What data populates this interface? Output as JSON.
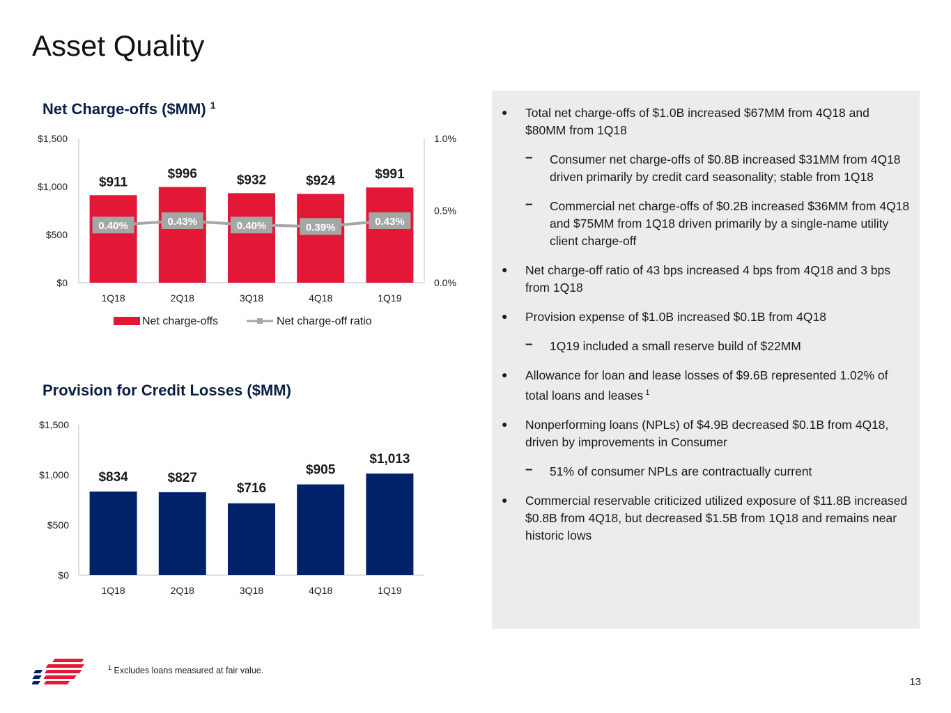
{
  "page": {
    "title": "Asset Quality",
    "page_number": "13",
    "footnote_mark": "1",
    "footnote_text": "Excludes loans measured at fair value.",
    "colors": {
      "red": "#e31837",
      "navy": "#012169",
      "gray": "#a6a6a6",
      "panel": "#ececec"
    }
  },
  "chart_data": [
    {
      "type": "bar",
      "title": "Net Charge-offs ($MM)",
      "title_sup": "1",
      "categories": [
        "1Q18",
        "2Q18",
        "3Q18",
        "4Q18",
        "1Q19"
      ],
      "series": [
        {
          "name": "Net charge-offs",
          "type": "bar",
          "values": [
            911,
            996,
            932,
            924,
            991
          ],
          "labels": [
            "$911",
            "$996",
            "$932",
            "$924",
            "$991"
          ]
        },
        {
          "name": "Net charge-off ratio",
          "type": "line",
          "axis": "right",
          "values": [
            0.4,
            0.43,
            0.4,
            0.39,
            0.43
          ],
          "labels": [
            "0.40%",
            "0.43%",
            "0.40%",
            "0.39%",
            "0.43%"
          ]
        }
      ],
      "ylim": [
        0,
        1500
      ],
      "yticks": [
        "$0",
        "$500",
        "$1,000",
        "$1,500"
      ],
      "y2lim": [
        0,
        1.0
      ],
      "y2ticks": [
        "0.0%",
        "0.5%",
        "1.0%"
      ],
      "legend": "bottom"
    },
    {
      "type": "bar",
      "title": "Provision for Credit Losses ($MM)",
      "categories": [
        "1Q18",
        "2Q18",
        "3Q18",
        "4Q18",
        "1Q19"
      ],
      "series": [
        {
          "values": [
            834,
            827,
            716,
            905,
            1013
          ],
          "labels": [
            "$834",
            "$827",
            "$716",
            "$905",
            "$1,013"
          ]
        }
      ],
      "ylim": [
        0,
        1500
      ],
      "yticks": [
        "$0",
        "$500",
        "$1,000",
        "$1,500"
      ]
    }
  ],
  "bullets": [
    {
      "level": 1,
      "text": "Total net charge-offs of $1.0B increased $67MM from 4Q18 and $80MM from 1Q18"
    },
    {
      "level": 2,
      "text": "Consumer net charge-offs of $0.8B increased $31MM from 4Q18 driven primarily by credit card seasonality; stable from 1Q18"
    },
    {
      "level": 2,
      "text": "Commercial net charge-offs of $0.2B increased $36MM from 4Q18 and $75MM from 1Q18 driven primarily by a single-name utility client charge-off"
    },
    {
      "level": 1,
      "text": "Net charge-off ratio of 43 bps increased 4 bps from 4Q18 and 3 bps from 1Q18"
    },
    {
      "level": 1,
      "text": "Provision expense of $1.0B increased $0.1B from 4Q18"
    },
    {
      "level": 2,
      "text": "1Q19 included a small reserve build of $22MM"
    },
    {
      "level": 1,
      "text": "Allowance for loan and lease losses of $9.6B represented 1.02% of total loans and leases",
      "sup": "1"
    },
    {
      "level": 1,
      "text": "Nonperforming loans (NPLs) of $4.9B decreased $0.1B from 4Q18, driven by improvements in Consumer"
    },
    {
      "level": 2,
      "text": "51% of consumer NPLs are contractually current"
    },
    {
      "level": 1,
      "text": "Commercial reservable criticized utilized exposure of $11.8B increased $0.8B from 4Q18, but decreased $1.5B from 1Q18 and remains near historic lows"
    }
  ]
}
